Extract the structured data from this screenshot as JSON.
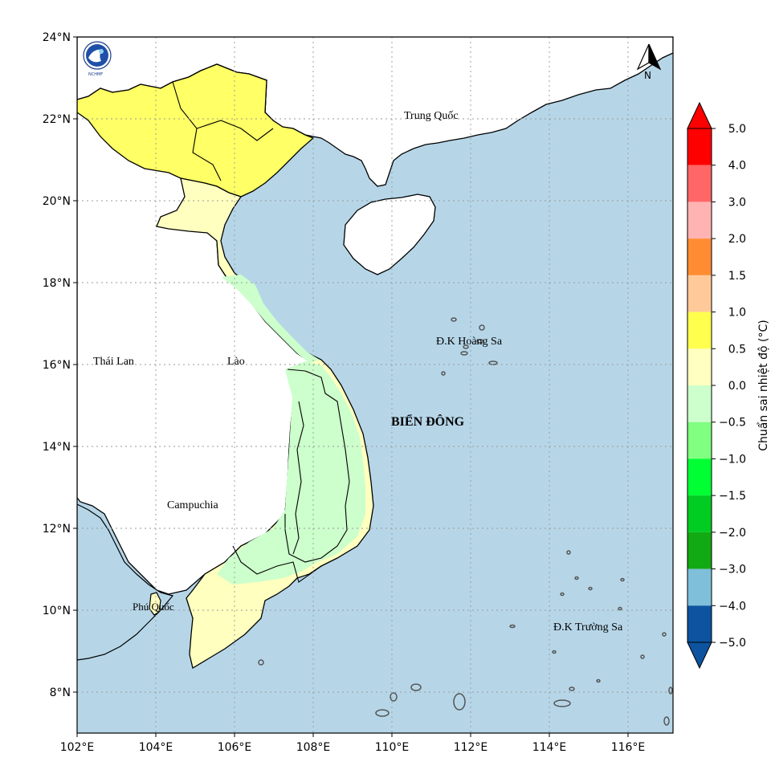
{
  "map": {
    "logo_text": "NCHMF",
    "north_label": "N",
    "lat_ticks": [
      "24°N",
      "22°N",
      "20°N",
      "18°N",
      "16°N",
      "14°N",
      "12°N",
      "10°N",
      "8°N"
    ],
    "lon_ticks": [
      "102°E",
      "104°E",
      "106°E",
      "108°E",
      "110°E",
      "112°E",
      "114°E",
      "116°E"
    ],
    "labels": {
      "china": "Trung Quốc",
      "thailand": "Thái Lan",
      "laos": "Lào",
      "cambodia": "Campuchia",
      "phu_quoc": "Phú Quốc",
      "hoang_sa": "Đ.K Hoàng Sa",
      "truong_sa": "Đ.K Trường Sa",
      "east_sea": "BIỂN ĐÔNG"
    },
    "colors": {
      "sea": "#b6d6e8",
      "land_outside": "#ffffff",
      "north_region": "#ffff66",
      "anomaly_0_05": "#ffffbf",
      "anomaly_m05_0": "#ccffcc"
    }
  },
  "colorbar": {
    "title": "Chuẩn sai nhiệt độ (°C)",
    "tick_labels": [
      "5.0",
      "4.0",
      "3.0",
      "2.0",
      "1.5",
      "1.0",
      "0.5",
      "0.0",
      "−0.5",
      "−1.0",
      "−1.5",
      "−2.0",
      "−3.0",
      "−4.0",
      "−5.0"
    ],
    "bins": [
      {
        "from": 4.0,
        "to": 5.0,
        "color": "#ff0000"
      },
      {
        "from": 3.0,
        "to": 4.0,
        "color": "#ff6666"
      },
      {
        "from": 2.0,
        "to": 3.0,
        "color": "#ffb3b3"
      },
      {
        "from": 1.5,
        "to": 2.0,
        "color": "#ff8c33"
      },
      {
        "from": 1.0,
        "to": 1.5,
        "color": "#ffc999"
      },
      {
        "from": 0.5,
        "to": 1.0,
        "color": "#ffff4d"
      },
      {
        "from": 0.0,
        "to": 0.5,
        "color": "#ffffbf"
      },
      {
        "from": -0.5,
        "to": 0.0,
        "color": "#ccffcc"
      },
      {
        "from": -1.0,
        "to": -0.5,
        "color": "#80ff80"
      },
      {
        "from": -1.5,
        "to": -1.0,
        "color": "#00ff33"
      },
      {
        "from": -2.0,
        "to": -1.5,
        "color": "#00cc22"
      },
      {
        "from": -3.0,
        "to": -2.0,
        "color": "#12aa12"
      },
      {
        "from": -4.0,
        "to": -3.0,
        "color": "#7fbfd9"
      },
      {
        "from": -5.0,
        "to": -4.0,
        "color": "#3f8fcc"
      }
    ],
    "extend_high_color": "#ff0000",
    "extend_low_color": "#0d53a0",
    "lowest_bin_color": "#0d53a0"
  }
}
